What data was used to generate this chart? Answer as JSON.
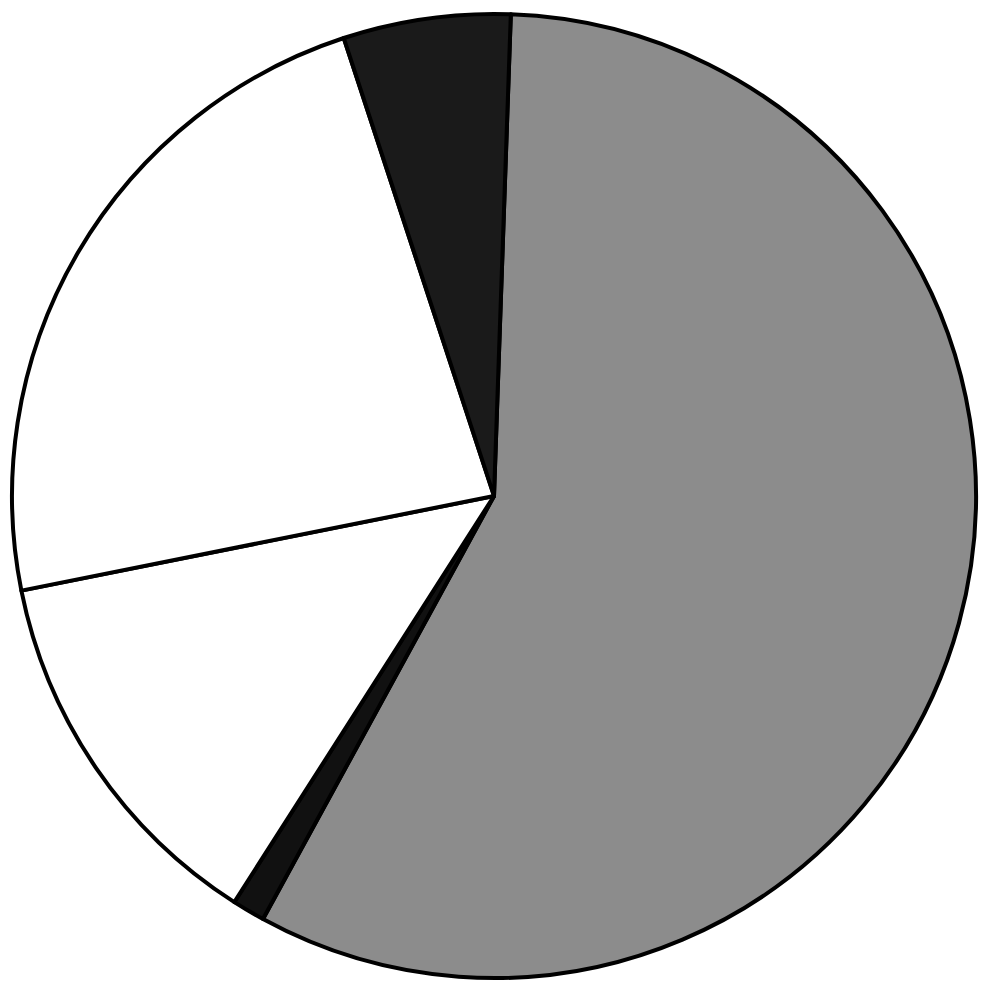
{
  "chart_data": {
    "type": "pie",
    "legend": false,
    "categories": [
      null,
      null,
      null,
      null,
      null
    ],
    "values": [
      57.4,
      1.1,
      12.8,
      23.1,
      5.6
    ],
    "colors": [
      "#8c8c8c",
      "#111111",
      "#ffffff",
      "#ffffff",
      "#1a1a1a"
    ]
  }
}
